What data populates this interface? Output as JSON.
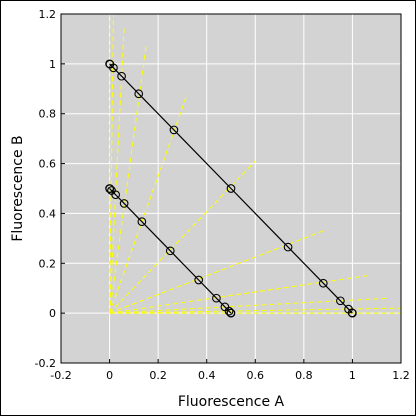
{
  "chart_data": {
    "type": "scatter",
    "title": "",
    "xlabel": "Fluorescence A",
    "ylabel": "Fluorescence B",
    "xlim": [
      -0.2,
      1.2
    ],
    "ylim": [
      -0.2,
      1.2
    ],
    "xticks": [
      -0.2,
      0,
      0.2,
      0.4,
      0.6,
      0.8,
      1,
      1.2
    ],
    "yticks": [
      -0.2,
      0,
      0.2,
      0.4,
      0.6,
      0.8,
      1,
      1.2
    ],
    "xtick_labels": [
      "-0.2",
      "0",
      "0.2",
      "0.4",
      "0.6",
      "0.8",
      "1",
      "1.2"
    ],
    "ytick_labels": [
      "-0.2",
      "0",
      "0.2",
      "0.4",
      "0.6",
      "0.8",
      "1",
      "1.2"
    ],
    "grid": true,
    "legend": "none",
    "colors": {
      "plot_background": "#d3d3d3",
      "grid": "#ffffff",
      "rays": "#ffff00",
      "lines": "#000000",
      "markers": "#000000"
    },
    "rays": [
      {
        "x": [
          0,
          0.0
        ],
        "y": [
          0,
          1.2
        ]
      },
      {
        "x": [
          0,
          0.016
        ],
        "y": [
          0,
          1.2
        ]
      },
      {
        "x": [
          0,
          0.06
        ],
        "y": [
          0,
          1.15
        ]
      },
      {
        "x": [
          0,
          0.15
        ],
        "y": [
          0,
          1.07
        ]
      },
      {
        "x": [
          0,
          0.32
        ],
        "y": [
          0,
          0.88
        ]
      },
      {
        "x": [
          0,
          0.6
        ],
        "y": [
          0,
          0.61
        ]
      },
      {
        "x": [
          0,
          0.88
        ],
        "y": [
          0,
          0.33
        ]
      },
      {
        "x": [
          0,
          1.06
        ],
        "y": [
          0,
          0.15
        ]
      },
      {
        "x": [
          0,
          1.15
        ],
        "y": [
          0,
          0.06
        ]
      },
      {
        "x": [
          0,
          1.2
        ],
        "y": [
          0,
          0.02
        ]
      },
      {
        "x": [
          0,
          1.2
        ],
        "y": [
          0,
          0.0
        ]
      }
    ],
    "series": [
      {
        "x": [
          0,
          0.0015,
          0.016,
          0.0495,
          0.12,
          0.265,
          0.5,
          0.735,
          0.88,
          0.9505,
          0.984,
          0.9985,
          1.0
        ],
        "y": [
          1.0,
          0.9985,
          0.984,
          0.9505,
          0.88,
          0.735,
          0.5,
          0.265,
          0.12,
          0.0495,
          0.016,
          0.0015,
          0
        ]
      },
      {
        "x": [
          0,
          0.0008,
          0.008,
          0.025,
          0.06,
          0.133,
          0.25,
          0.367,
          0.44,
          0.475,
          0.492,
          0.4992,
          0.5
        ],
        "y": [
          0.5,
          0.4992,
          0.492,
          0.475,
          0.44,
          0.367,
          0.25,
          0.133,
          0.06,
          0.025,
          0.008,
          0.0008,
          0
        ]
      }
    ]
  }
}
